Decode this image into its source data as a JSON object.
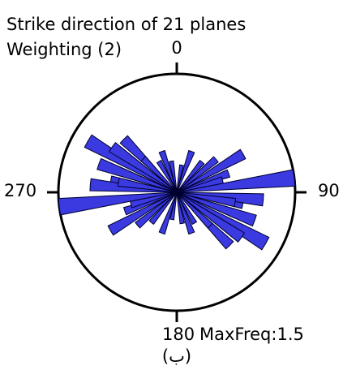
{
  "chart_data": {
    "type": "rose",
    "title": "Strike direction of 21 planes",
    "subtitle": "Weighting (2)",
    "direction_labels": {
      "north": "0",
      "east": "90",
      "south": "180",
      "west": "270"
    },
    "max_freq_label": "MaxFreq:1.5",
    "caption": "(ب)",
    "rmax": 1.5,
    "color": "#3a3ae0",
    "directions": [
      83,
      60,
      300,
      315,
      100,
      20,
      160,
      70,
      290,
      110,
      40,
      135,
      330,
      95,
      280,
      50,
      125,
      10,
      170,
      75,
      305
    ],
    "values": [
      1.5,
      0.97,
      1.3,
      0.95,
      0.85,
      0.55,
      0.55,
      0.7,
      0.8,
      1.05,
      0.5,
      0.6,
      0.45,
      1.1,
      0.75,
      0.65,
      0.9,
      0.35,
      0.4,
      0.6,
      1.0
    ]
  }
}
